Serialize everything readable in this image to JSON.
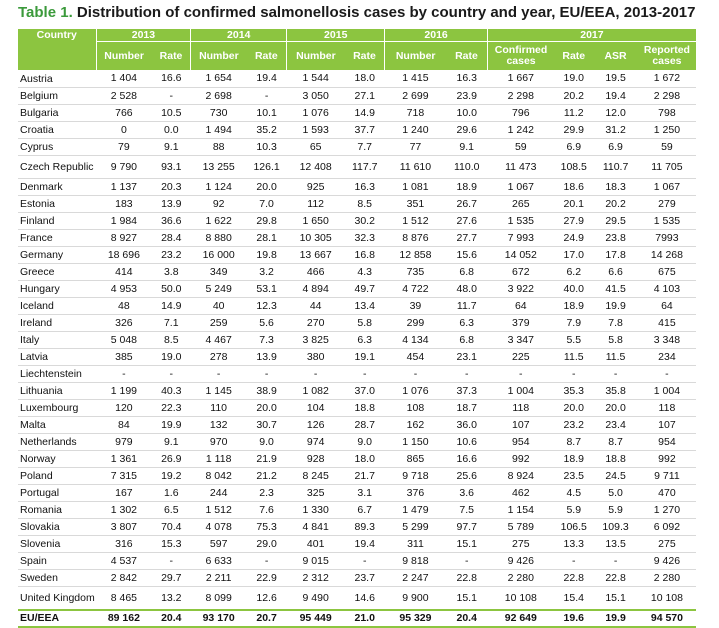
{
  "title": {
    "prefix": "Table 1.",
    "text": "Distribution of confirmed salmonellosis cases by country and year, EU/EEA, 2013-2017"
  },
  "header": {
    "country": "Country",
    "years": [
      "2013",
      "2014",
      "2015",
      "2016",
      "2017"
    ],
    "number": "Number",
    "rate": "Rate",
    "confirmed_cases": "Confirmed cases",
    "asr": "ASR",
    "reported_cases": "Reported cases"
  },
  "rows": [
    [
      "Austria",
      "1 404",
      "16.6",
      "1 654",
      "19.4",
      "1 544",
      "18.0",
      "1 415",
      "16.3",
      "1 667",
      "19.0",
      "19.5",
      "1 672"
    ],
    [
      "Belgium",
      "2 528",
      "-",
      "2 698",
      "-",
      "3 050",
      "27.1",
      "2 699",
      "23.9",
      "2 298",
      "20.2",
      "19.4",
      "2 298"
    ],
    [
      "Bulgaria",
      "766",
      "10.5",
      "730",
      "10.1",
      "1 076",
      "14.9",
      "718",
      "10.0",
      "796",
      "11.2",
      "12.0",
      "798"
    ],
    [
      "Croatia",
      "0",
      "0.0",
      "1 494",
      "35.2",
      "1 593",
      "37.7",
      "1 240",
      "29.6",
      "1 242",
      "29.9",
      "31.2",
      "1 250"
    ],
    [
      "Cyprus",
      "79",
      "9.1",
      "88",
      "10.3",
      "65",
      "7.7",
      "77",
      "9.1",
      "59",
      "6.9",
      "6.9",
      "59"
    ],
    [
      "Czech Republic",
      "9 790",
      "93.1",
      "13 255",
      "126.1",
      "12 408",
      "117.7",
      "11 610",
      "110.0",
      "11 473",
      "108.5",
      "110.7",
      "11 705"
    ],
    [
      "Denmark",
      "1 137",
      "20.3",
      "1 124",
      "20.0",
      "925",
      "16.3",
      "1 081",
      "18.9",
      "1 067",
      "18.6",
      "18.3",
      "1 067"
    ],
    [
      "Estonia",
      "183",
      "13.9",
      "92",
      "7.0",
      "112",
      "8.5",
      "351",
      "26.7",
      "265",
      "20.1",
      "20.2",
      "279"
    ],
    [
      "Finland",
      "1 984",
      "36.6",
      "1 622",
      "29.8",
      "1 650",
      "30.2",
      "1 512",
      "27.6",
      "1 535",
      "27.9",
      "29.5",
      "1 535"
    ],
    [
      "France",
      "8 927",
      "28.4",
      "8 880",
      "28.1",
      "10 305",
      "32.3",
      "8 876",
      "27.7",
      "7 993",
      "24.9",
      "23.8",
      "7993"
    ],
    [
      "Germany",
      "18 696",
      "23.2",
      "16 000",
      "19.8",
      "13 667",
      "16.8",
      "12 858",
      "15.6",
      "14 052",
      "17.0",
      "17.8",
      "14 268"
    ],
    [
      "Greece",
      "414",
      "3.8",
      "349",
      "3.2",
      "466",
      "4.3",
      "735",
      "6.8",
      "672",
      "6.2",
      "6.6",
      "675"
    ],
    [
      "Hungary",
      "4 953",
      "50.0",
      "5 249",
      "53.1",
      "4 894",
      "49.7",
      "4 722",
      "48.0",
      "3 922",
      "40.0",
      "41.5",
      "4 103"
    ],
    [
      "Iceland",
      "48",
      "14.9",
      "40",
      "12.3",
      "44",
      "13.4",
      "39",
      "11.7",
      "64",
      "18.9",
      "19.9",
      "64"
    ],
    [
      "Ireland",
      "326",
      "7.1",
      "259",
      "5.6",
      "270",
      "5.8",
      "299",
      "6.3",
      "379",
      "7.9",
      "7.8",
      "415"
    ],
    [
      "Italy",
      "5 048",
      "8.5",
      "4 467",
      "7.3",
      "3 825",
      "6.3",
      "4 134",
      "6.8",
      "3 347",
      "5.5",
      "5.8",
      "3 348"
    ],
    [
      "Latvia",
      "385",
      "19.0",
      "278",
      "13.9",
      "380",
      "19.1",
      "454",
      "23.1",
      "225",
      "11.5",
      "11.5",
      "234"
    ],
    [
      "Liechtenstein",
      "-",
      "-",
      "-",
      "-",
      "-",
      "-",
      "-",
      "-",
      "-",
      "-",
      "-",
      "-"
    ],
    [
      "Lithuania",
      "1 199",
      "40.3",
      "1 145",
      "38.9",
      "1 082",
      "37.0",
      "1 076",
      "37.3",
      "1 004",
      "35.3",
      "35.8",
      "1 004"
    ],
    [
      "Luxembourg",
      "120",
      "22.3",
      "110",
      "20.0",
      "104",
      "18.8",
      "108",
      "18.7",
      "118",
      "20.0",
      "20.0",
      "118"
    ],
    [
      "Malta",
      "84",
      "19.9",
      "132",
      "30.7",
      "126",
      "28.7",
      "162",
      "36.0",
      "107",
      "23.2",
      "23.4",
      "107"
    ],
    [
      "Netherlands",
      "979",
      "9.1",
      "970",
      "9.0",
      "974",
      "9.0",
      "1 150",
      "10.6",
      "954",
      "8.7",
      "8.7",
      "954"
    ],
    [
      "Norway",
      "1 361",
      "26.9",
      "1 118",
      "21.9",
      "928",
      "18.0",
      "865",
      "16.6",
      "992",
      "18.9",
      "18.8",
      "992"
    ],
    [
      "Poland",
      "7 315",
      "19.2",
      "8 042",
      "21.2",
      "8 245",
      "21.7",
      "9 718",
      "25.6",
      "8 924",
      "23.5",
      "24.5",
      "9 711"
    ],
    [
      "Portugal",
      "167",
      "1.6",
      "244",
      "2.3",
      "325",
      "3.1",
      "376",
      "3.6",
      "462",
      "4.5",
      "5.0",
      "470"
    ],
    [
      "Romania",
      "1 302",
      "6.5",
      "1 512",
      "7.6",
      "1 330",
      "6.7",
      "1 479",
      "7.5",
      "1 154",
      "5.9",
      "5.9",
      "1 270"
    ],
    [
      "Slovakia",
      "3 807",
      "70.4",
      "4 078",
      "75.3",
      "4 841",
      "89.3",
      "5 299",
      "97.7",
      "5 789",
      "106.5",
      "109.3",
      "6 092"
    ],
    [
      "Slovenia",
      "316",
      "15.3",
      "597",
      "29.0",
      "401",
      "19.4",
      "311",
      "15.1",
      "275",
      "13.3",
      "13.5",
      "275"
    ],
    [
      "Spain",
      "4 537",
      "-",
      "6 633",
      "-",
      "9 015",
      "-",
      "9 818",
      "-",
      "9 426",
      "-",
      "-",
      "9 426"
    ],
    [
      "Sweden",
      "2 842",
      "29.7",
      "2 211",
      "22.9",
      "2 312",
      "23.7",
      "2 247",
      "22.8",
      "2 280",
      "22.8",
      "22.8",
      "2 280"
    ],
    [
      "United Kingdom",
      "8 465",
      "13.2",
      "8 099",
      "12.6",
      "9 490",
      "14.6",
      "9 900",
      "15.1",
      "10 108",
      "15.4",
      "15.1",
      "10 108"
    ]
  ],
  "total": [
    "EU/EEA",
    "89 162",
    "20.4",
    "93 170",
    "20.7",
    "95 449",
    "21.0",
    "95 329",
    "20.4",
    "92 649",
    "19.6",
    "19.9",
    "94 570"
  ]
}
